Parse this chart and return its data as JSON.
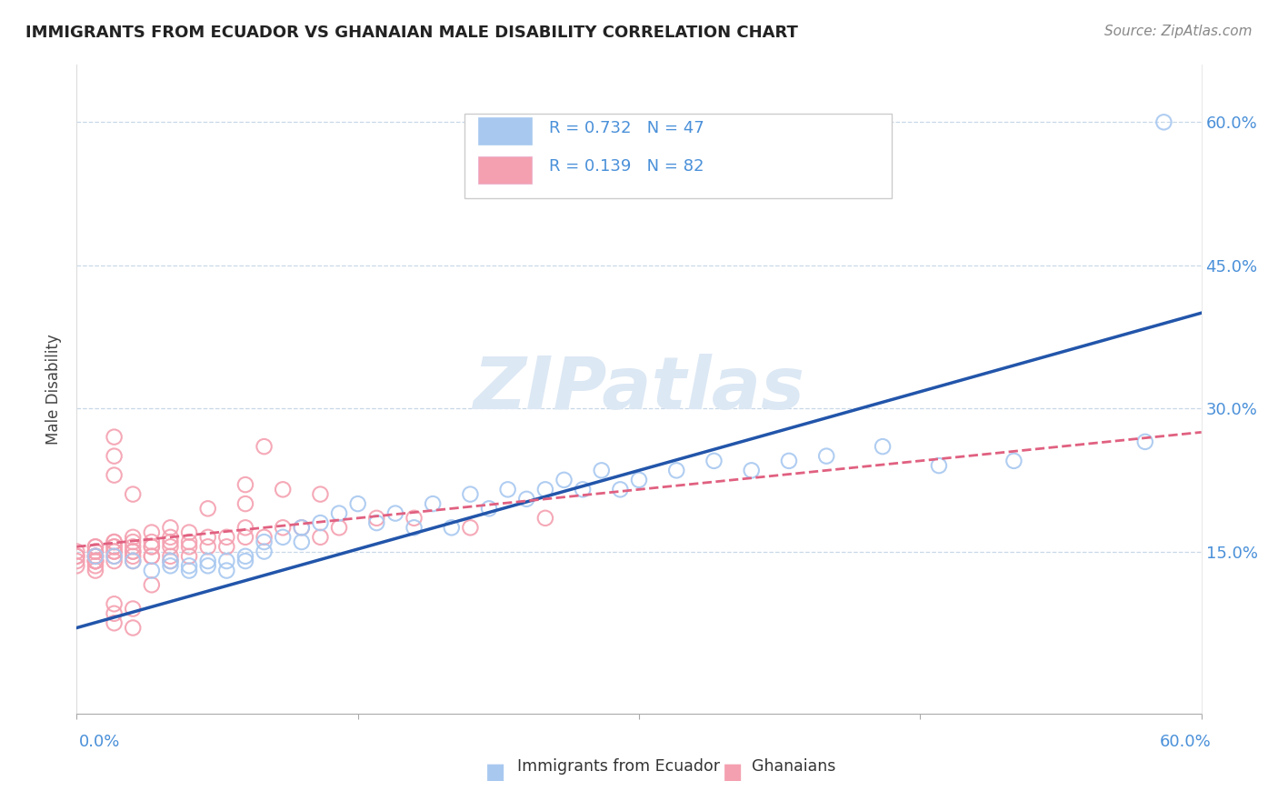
{
  "title": "IMMIGRANTS FROM ECUADOR VS GHANAIAN MALE DISABILITY CORRELATION CHART",
  "source": "Source: ZipAtlas.com",
  "ylabel": "Male Disability",
  "legend_r1": "R = 0.732",
  "legend_n1": "N = 47",
  "legend_r2": "R = 0.139",
  "legend_n2": "N = 82",
  "color_blue": "#A8C8F0",
  "color_pink": "#F4A0B0",
  "line_blue": "#2255AA",
  "line_pink": "#E06080",
  "watermark_color": "#dce8f4",
  "xlim": [
    0.0,
    0.6
  ],
  "ylim": [
    -0.02,
    0.66
  ],
  "ytick_vals": [
    0.0,
    0.15,
    0.3,
    0.45,
    0.6
  ],
  "ytick_labels": [
    "",
    "15.0%",
    "30.0%",
    "45.0%",
    "60.0%"
  ],
  "blue_line_x": [
    0.0,
    0.6
  ],
  "blue_line_y": [
    0.07,
    0.4
  ],
  "pink_line_x": [
    0.0,
    0.6
  ],
  "pink_line_y": [
    0.155,
    0.275
  ],
  "blue_x": [
    0.01,
    0.02,
    0.03,
    0.04,
    0.05,
    0.05,
    0.06,
    0.06,
    0.07,
    0.07,
    0.08,
    0.08,
    0.09,
    0.09,
    0.1,
    0.1,
    0.11,
    0.12,
    0.12,
    0.13,
    0.14,
    0.15,
    0.16,
    0.17,
    0.18,
    0.19,
    0.2,
    0.21,
    0.22,
    0.23,
    0.24,
    0.25,
    0.26,
    0.27,
    0.28,
    0.29,
    0.3,
    0.32,
    0.34,
    0.36,
    0.38,
    0.4,
    0.43,
    0.46,
    0.5,
    0.57,
    0.58
  ],
  "blue_y": [
    0.145,
    0.145,
    0.14,
    0.13,
    0.135,
    0.14,
    0.135,
    0.13,
    0.14,
    0.135,
    0.14,
    0.13,
    0.145,
    0.14,
    0.16,
    0.15,
    0.165,
    0.175,
    0.16,
    0.18,
    0.19,
    0.2,
    0.18,
    0.19,
    0.175,
    0.2,
    0.175,
    0.21,
    0.195,
    0.215,
    0.205,
    0.215,
    0.225,
    0.215,
    0.235,
    0.215,
    0.225,
    0.235,
    0.245,
    0.235,
    0.245,
    0.25,
    0.26,
    0.24,
    0.245,
    0.265,
    0.6
  ],
  "pink_x": [
    0.0,
    0.0,
    0.0,
    0.0,
    0.0,
    0.01,
    0.01,
    0.01,
    0.01,
    0.01,
    0.01,
    0.01,
    0.01,
    0.01,
    0.01,
    0.01,
    0.02,
    0.02,
    0.02,
    0.02,
    0.02,
    0.02,
    0.02,
    0.02,
    0.02,
    0.02,
    0.03,
    0.03,
    0.03,
    0.03,
    0.03,
    0.03,
    0.03,
    0.04,
    0.04,
    0.04,
    0.04,
    0.04,
    0.04,
    0.05,
    0.05,
    0.05,
    0.05,
    0.05,
    0.05,
    0.06,
    0.06,
    0.06,
    0.06,
    0.07,
    0.07,
    0.07,
    0.08,
    0.08,
    0.09,
    0.09,
    0.09,
    0.1,
    0.11,
    0.12,
    0.13,
    0.14,
    0.16,
    0.18,
    0.21,
    0.25,
    0.09,
    0.11,
    0.13,
    0.1,
    0.04,
    0.03,
    0.03,
    0.02,
    0.02,
    0.02,
    0.02,
    0.03,
    0.01,
    0.01,
    0.01,
    0.01
  ],
  "pink_y": [
    0.14,
    0.145,
    0.135,
    0.145,
    0.15,
    0.14,
    0.15,
    0.145,
    0.14,
    0.155,
    0.145,
    0.14,
    0.15,
    0.145,
    0.14,
    0.155,
    0.155,
    0.16,
    0.15,
    0.145,
    0.14,
    0.155,
    0.25,
    0.27,
    0.16,
    0.15,
    0.165,
    0.15,
    0.155,
    0.145,
    0.16,
    0.15,
    0.14,
    0.16,
    0.155,
    0.145,
    0.17,
    0.155,
    0.145,
    0.165,
    0.155,
    0.175,
    0.16,
    0.145,
    0.14,
    0.17,
    0.16,
    0.145,
    0.155,
    0.195,
    0.155,
    0.165,
    0.165,
    0.155,
    0.165,
    0.175,
    0.2,
    0.165,
    0.175,
    0.175,
    0.165,
    0.175,
    0.185,
    0.185,
    0.175,
    0.185,
    0.22,
    0.215,
    0.21,
    0.26,
    0.115,
    0.09,
    0.07,
    0.085,
    0.095,
    0.23,
    0.075,
    0.21,
    0.135,
    0.14,
    0.145,
    0.13
  ]
}
